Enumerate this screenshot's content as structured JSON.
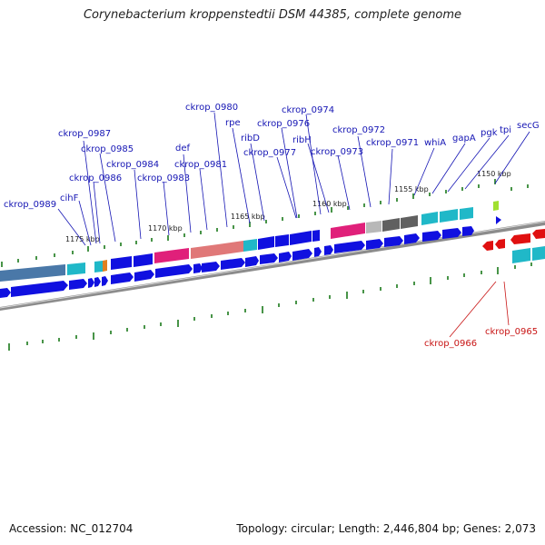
{
  "title": "Corynebacterium kroppenstedtii DSM 44385, complete genome",
  "footer": {
    "accession": "Accession: NC_012704",
    "summary": "Topology: circular; Length: 2,446,804 bp; Genes: 2,073"
  },
  "colors": {
    "forward_cds": "#1010e0",
    "reverse_cds": "#e01010",
    "label_forward": "#1515b4",
    "label_reverse": "#c81414",
    "backbone": "#888888",
    "tick": "#1a7a1a",
    "magenta": "#e0207a",
    "salmon": "#e07878",
    "cyan": "#20b8c8",
    "gray_dark": "#606060",
    "gray_light": "#b8b8b8",
    "steel": "#4a78a8",
    "orange": "#e08020",
    "lime": "#a0e030"
  },
  "kbp_labels": [
    {
      "text": "1175 kbp",
      "pos": 1175
    },
    {
      "text": "1170 kbp",
      "pos": 1170
    },
    {
      "text": "1165 kbp",
      "pos": 1165
    },
    {
      "text": "1160 kbp",
      "pos": 1160
    },
    {
      "text": "1155 kbp",
      "pos": 1155
    },
    {
      "text": "1150 kbp",
      "pos": 1150
    }
  ],
  "gene_labels": [
    {
      "name": "ckrop_0989",
      "strand": "+"
    },
    {
      "name": "cihF",
      "strand": "+"
    },
    {
      "name": "ckrop_0987",
      "strand": "+"
    },
    {
      "name": "ckrop_0986",
      "strand": "+"
    },
    {
      "name": "ckrop_0985",
      "strand": "+"
    },
    {
      "name": "ckrop_0984",
      "strand": "+"
    },
    {
      "name": "ckrop_0983",
      "strand": "+"
    },
    {
      "name": "def",
      "strand": "+"
    },
    {
      "name": "ckrop_0981",
      "strand": "+"
    },
    {
      "name": "ckrop_0980",
      "strand": "+"
    },
    {
      "name": "rpe",
      "strand": "+"
    },
    {
      "name": "ribD",
      "strand": "+"
    },
    {
      "name": "ckrop_0977",
      "strand": "+"
    },
    {
      "name": "ckrop_0976",
      "strand": "+"
    },
    {
      "name": "ckrop_0974",
      "strand": "+"
    },
    {
      "name": "ribH",
      "strand": "+"
    },
    {
      "name": "ckrop_0973",
      "strand": "+"
    },
    {
      "name": "ckrop_0972",
      "strand": "+"
    },
    {
      "name": "ckrop_0971",
      "strand": "+"
    },
    {
      "name": "whiA",
      "strand": "+"
    },
    {
      "name": "gapA",
      "strand": "+"
    },
    {
      "name": "pgk",
      "strand": "+"
    },
    {
      "name": "tpi",
      "strand": "+"
    },
    {
      "name": "secG",
      "strand": "+"
    },
    {
      "name": "ckrop_0966",
      "strand": "-"
    },
    {
      "name": "ckrop_0965",
      "strand": "-"
    }
  ]
}
